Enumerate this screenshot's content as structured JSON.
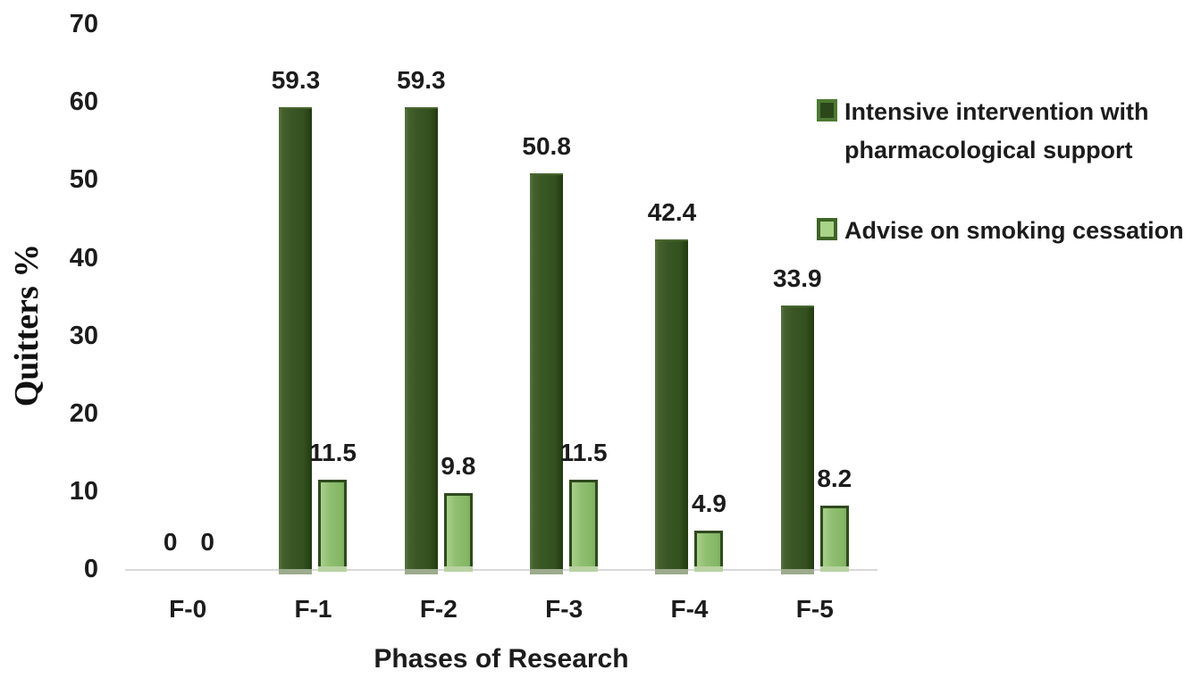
{
  "chart_data": {
    "type": "bar",
    "title": "",
    "xlabel": "Phases of Research",
    "ylabel": "Quitters %",
    "ylim": [
      0,
      70
    ],
    "yticks": [
      0,
      10,
      20,
      30,
      40,
      50,
      60,
      70
    ],
    "grid": false,
    "legend_position": "right",
    "categories": [
      "F-0",
      "F-1",
      "F-2",
      "F-3",
      "F-4",
      "F-5"
    ],
    "series": [
      {
        "name": "Intensive intervention with pharmacological support",
        "color": "#3a5726",
        "values": [
          0,
          59.3,
          59.3,
          50.8,
          42.4,
          33.9
        ],
        "labels": [
          "0",
          "59.3",
          "59.3",
          "50.8",
          "42.4",
          "33.9"
        ]
      },
      {
        "name": "Advise on smoking cessation",
        "color": "#8fbe70",
        "values": [
          0,
          11.5,
          9.8,
          11.5,
          4.9,
          8.2
        ],
        "labels": [
          "0",
          "11.5",
          "9.8",
          "11.5",
          "4.9",
          "8.2"
        ]
      }
    ],
    "axis_line_color": "#d9d9d9"
  }
}
